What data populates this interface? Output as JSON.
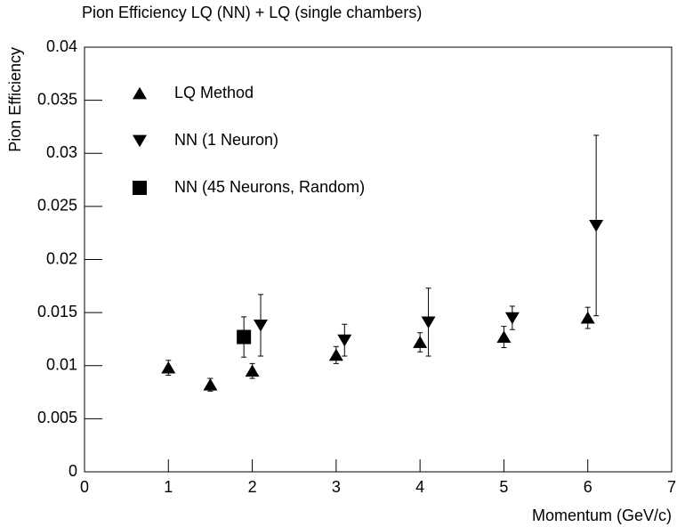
{
  "chart_data": {
    "type": "scatter",
    "title": "Pion Efficiency LQ (NN) + LQ (single chambers)",
    "x_label": "Momentum (GeV/c)",
    "y_label": "Pion Efficiency",
    "xlim": [
      0,
      7
    ],
    "xticks": [
      0,
      1,
      2,
      3,
      4,
      5,
      6,
      7
    ],
    "ylim": [
      0,
      0.04
    ],
    "yticks": [
      0,
      0.005,
      0.01,
      0.015,
      0.02,
      0.025,
      0.03,
      0.035,
      0.04
    ],
    "legend": "top-left",
    "series": [
      {
        "name": "LQ Method",
        "color": "#000000",
        "marker": "triangle-up",
        "x": [
          1,
          1.5,
          2,
          3,
          4,
          5,
          6
        ],
        "values": [
          0.0098,
          0.0082,
          0.0095,
          0.011,
          0.0122,
          0.0127,
          0.0145
        ],
        "errors": [
          0.0007,
          0.0006,
          0.0007,
          0.0008,
          0.0009,
          0.001,
          0.001
        ]
      },
      {
        "name": "NN (1 Neuron)",
        "color": "#000000",
        "marker": "triangle-down",
        "x": [
          2.1,
          3.1,
          4.1,
          5.1,
          6.1
        ],
        "values": [
          0.0138,
          0.0124,
          0.0141,
          0.0145,
          0.0232
        ],
        "errors": [
          0.0029,
          0.0015,
          0.0032,
          0.0011,
          0.0085
        ]
      },
      {
        "name": "NN (45 Neurons, Random)",
        "color": "#000000",
        "marker": "square",
        "x": [
          1.9
        ],
        "values": [
          0.0127
        ],
        "errors": [
          0.0019
        ]
      }
    ]
  }
}
